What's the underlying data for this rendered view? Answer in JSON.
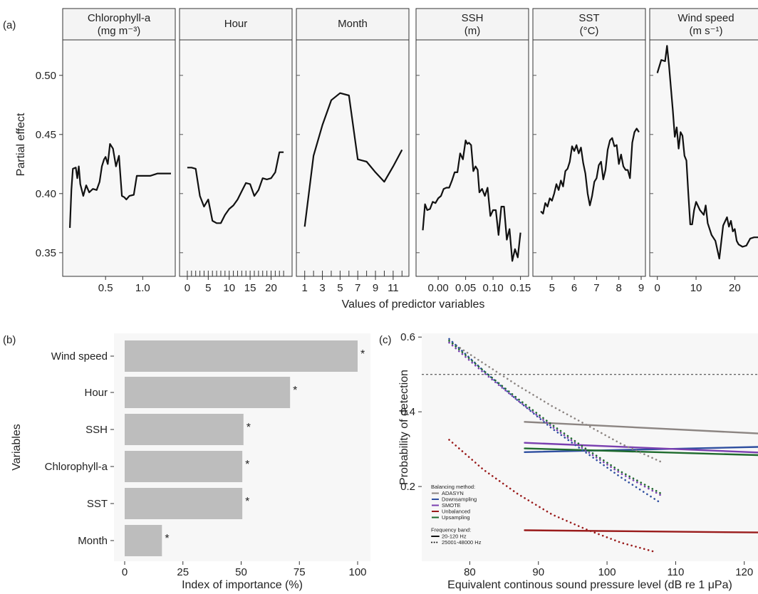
{
  "panel_labels": {
    "a": "(a)",
    "b": "(b)",
    "c": "(c)"
  },
  "colors": {
    "panel_bg": "#f7f7f7",
    "line": "#111111",
    "bar": "#bdbdbd",
    "adasyn": "#8c8582",
    "downsampling": "#2f4fa0",
    "smote": "#7a3fb0",
    "unbalanced": "#9a1b1b",
    "upsampling": "#1f6b2e"
  },
  "chart_data": [
    {
      "type": "line",
      "panel": "(a)",
      "ylabel": "Partial effect",
      "xlabel": "Values of predictor variables",
      "ylim": [
        0.33,
        0.53
      ],
      "yticks": [
        0.35,
        0.4,
        0.45,
        0.5
      ],
      "ytick_labels": [
        "0.35",
        "0.40",
        "0.45",
        "0.50"
      ],
      "facets": [
        {
          "title_line1": "Chlorophyll-a",
          "title_line2": "(mg m⁻³)",
          "xlim": [
            0,
            1.38
          ],
          "xticks": [
            0.5,
            1.0
          ],
          "xtick_labels": [
            "0.5",
            "1.0"
          ],
          "x": [
            0.02,
            0.04,
            0.06,
            0.1,
            0.12,
            0.14,
            0.16,
            0.2,
            0.24,
            0.28,
            0.33,
            0.38,
            0.42,
            0.45,
            0.48,
            0.5,
            0.53,
            0.56,
            0.6,
            0.64,
            0.68,
            0.72,
            0.75,
            0.78,
            0.82,
            0.88,
            0.92,
            1.0,
            1.1,
            1.2,
            1.3,
            1.38
          ],
          "y": [
            0.371,
            0.403,
            0.421,
            0.422,
            0.413,
            0.423,
            0.408,
            0.398,
            0.407,
            0.401,
            0.404,
            0.403,
            0.41,
            0.423,
            0.429,
            0.431,
            0.425,
            0.442,
            0.438,
            0.423,
            0.432,
            0.398,
            0.397,
            0.395,
            0.398,
            0.399,
            0.415,
            0.415,
            0.415,
            0.417,
            0.417,
            0.417
          ]
        },
        {
          "title_line1": "Hour",
          "title_line2": "",
          "xlim": [
            -0.5,
            24
          ],
          "xticks": [
            0,
            5,
            10,
            15,
            20
          ],
          "xtick_labels": [
            "0",
            "5",
            "10",
            "15",
            "20"
          ],
          "rug": [
            0,
            1,
            2,
            3,
            4,
            5,
            6,
            7,
            8,
            9,
            10,
            11,
            12,
            13,
            14,
            15,
            16,
            17,
            18,
            19,
            20,
            21,
            22,
            23
          ],
          "x": [
            0,
            1,
            2,
            3,
            4,
            5,
            6,
            7,
            8,
            9,
            10,
            11,
            12,
            13,
            14,
            15,
            16,
            17,
            18,
            19,
            20,
            21,
            22,
            23
          ],
          "y": [
            0.422,
            0.422,
            0.421,
            0.398,
            0.389,
            0.395,
            0.377,
            0.375,
            0.375,
            0.382,
            0.387,
            0.39,
            0.395,
            0.402,
            0.409,
            0.408,
            0.398,
            0.403,
            0.413,
            0.412,
            0.413,
            0.418,
            0.435,
            0.435
          ]
        },
        {
          "title_line1": "Month",
          "title_line2": "",
          "xlim": [
            0.7,
            12.3
          ],
          "xticks": [
            1,
            3,
            5,
            7,
            9,
            11
          ],
          "xtick_labels": [
            "1",
            "3",
            "5",
            "7",
            "9",
            "11"
          ],
          "rug": [
            1,
            2,
            3,
            4,
            5,
            6,
            7,
            8,
            9,
            10,
            11,
            12
          ],
          "x": [
            1,
            2,
            3,
            4,
            5,
            6,
            7,
            8,
            9,
            10,
            11,
            12
          ],
          "y": [
            0.372,
            0.432,
            0.458,
            0.479,
            0.485,
            0.483,
            0.429,
            0.427,
            0.418,
            0.41,
            0.423,
            0.437
          ]
        },
        {
          "title_line1": "SSH",
          "title_line2": "(m)",
          "xlim": [
            -0.03,
            0.157
          ],
          "xticks": [
            0.0,
            0.05,
            0.1,
            0.15
          ],
          "xtick_labels": [
            "0.00",
            "0.05",
            "0.10",
            "0.15"
          ],
          "x": [
            -0.028,
            -0.024,
            -0.02,
            -0.015,
            -0.01,
            -0.005,
            0.0,
            0.005,
            0.01,
            0.015,
            0.02,
            0.025,
            0.03,
            0.035,
            0.04,
            0.045,
            0.05,
            0.053,
            0.056,
            0.06,
            0.064,
            0.068,
            0.072,
            0.075,
            0.08,
            0.085,
            0.09,
            0.095,
            0.1,
            0.105,
            0.11,
            0.115,
            0.12,
            0.125,
            0.13,
            0.135,
            0.14,
            0.145,
            0.15
          ],
          "y": [
            0.369,
            0.391,
            0.386,
            0.387,
            0.393,
            0.392,
            0.396,
            0.398,
            0.404,
            0.405,
            0.405,
            0.411,
            0.418,
            0.418,
            0.434,
            0.429,
            0.445,
            0.442,
            0.443,
            0.441,
            0.419,
            0.423,
            0.42,
            0.401,
            0.404,
            0.398,
            0.405,
            0.381,
            0.386,
            0.386,
            0.365,
            0.389,
            0.389,
            0.361,
            0.37,
            0.343,
            0.353,
            0.346,
            0.367
          ]
        },
        {
          "title_line1": "SST",
          "title_line2": "(°C)",
          "xlim": [
            4.4,
            9.0
          ],
          "xticks": [
            5,
            6,
            7,
            8,
            9
          ],
          "xtick_labels": [
            "5",
            "6",
            "7",
            "8",
            "9"
          ],
          "x": [
            4.5,
            4.6,
            4.7,
            4.8,
            4.9,
            5.0,
            5.1,
            5.2,
            5.3,
            5.4,
            5.5,
            5.6,
            5.7,
            5.8,
            5.9,
            6.0,
            6.1,
            6.2,
            6.3,
            6.4,
            6.5,
            6.6,
            6.7,
            6.8,
            6.9,
            7.0,
            7.1,
            7.2,
            7.3,
            7.4,
            7.5,
            7.6,
            7.7,
            7.8,
            7.9,
            8.0,
            8.1,
            8.2,
            8.3,
            8.4,
            8.5,
            8.6,
            8.7,
            8.8,
            8.9
          ],
          "y": [
            0.385,
            0.383,
            0.392,
            0.389,
            0.396,
            0.394,
            0.4,
            0.408,
            0.403,
            0.411,
            0.406,
            0.419,
            0.421,
            0.427,
            0.44,
            0.436,
            0.441,
            0.434,
            0.439,
            0.426,
            0.417,
            0.4,
            0.39,
            0.398,
            0.41,
            0.413,
            0.424,
            0.427,
            0.412,
            0.42,
            0.437,
            0.445,
            0.447,
            0.44,
            0.441,
            0.425,
            0.433,
            0.423,
            0.42,
            0.42,
            0.413,
            0.443,
            0.452,
            0.455,
            0.452
          ]
        },
        {
          "title_line1": "Wind speed",
          "title_line2": "(m s⁻¹)",
          "xlim": [
            -0.5,
            26
          ],
          "xticks": [
            0,
            10,
            20
          ],
          "xtick_labels": [
            "0",
            "10",
            "20"
          ],
          "x": [
            0,
            1,
            2,
            2.5,
            3,
            4,
            4.5,
            5,
            5.5,
            6,
            6.5,
            7,
            7.5,
            8,
            8.5,
            9,
            9.5,
            10,
            11,
            12,
            12.5,
            13,
            14,
            15,
            16,
            17,
            18,
            18.5,
            19,
            19.5,
            20,
            20.5,
            21,
            22,
            23,
            24,
            25,
            26
          ],
          "y": [
            0.502,
            0.513,
            0.512,
            0.525,
            0.509,
            0.47,
            0.448,
            0.456,
            0.438,
            0.452,
            0.449,
            0.432,
            0.428,
            0.4,
            0.374,
            0.374,
            0.386,
            0.393,
            0.386,
            0.382,
            0.39,
            0.375,
            0.365,
            0.36,
            0.345,
            0.373,
            0.38,
            0.372,
            0.377,
            0.368,
            0.37,
            0.36,
            0.357,
            0.355,
            0.356,
            0.362,
            0.363,
            0.363
          ]
        }
      ]
    },
    {
      "type": "bar",
      "panel": "(b)",
      "orientation": "horizontal",
      "xlabel": "Index of importance (%)",
      "ylabel": "Variables",
      "xlim": [
        0,
        100
      ],
      "xticks": [
        0,
        25,
        50,
        75,
        100
      ],
      "xtick_labels": [
        "0",
        "25",
        "50",
        "75",
        "100"
      ],
      "categories": [
        "Wind speed",
        "Hour",
        "SSH",
        "Chlorophyll-a",
        "SST",
        "Month"
      ],
      "values": [
        100,
        71,
        51,
        50.5,
        50.5,
        16
      ],
      "annotations": [
        "*",
        "*",
        "*",
        "*",
        "*",
        "*"
      ]
    },
    {
      "type": "line",
      "panel": "(c)",
      "xlabel": "Equivalent continous sound pressure level (dB re 1 μPa)",
      "ylabel": "Probability of detection",
      "xlim": [
        73,
        122
      ],
      "ylim": [
        0.0,
        0.61
      ],
      "xticks": [
        80,
        90,
        100,
        110,
        120
      ],
      "xtick_labels": [
        "80",
        "90",
        "100",
        "110",
        "120"
      ],
      "yticks": [
        0.2,
        0.4,
        0.6
      ],
      "ytick_labels": [
        "0.2",
        "0.4",
        "0.6"
      ],
      "reference_line_y": 0.5,
      "legend": {
        "title_method": "Balancing method:",
        "title_band": "Frequency band:",
        "methods": [
          {
            "name": "ADASYN",
            "color_key": "adasyn"
          },
          {
            "name": "Downsampling",
            "color_key": "downsampling"
          },
          {
            "name": "SMOTE",
            "color_key": "smote"
          },
          {
            "name": "Unbalanced",
            "color_key": "unbalanced"
          },
          {
            "name": "Upsampling",
            "color_key": "upsampling"
          }
        ],
        "bands": [
          {
            "name": "20-120 Hz",
            "style": "solid"
          },
          {
            "name": "25001-48000 Hz",
            "style": "dotted"
          }
        ]
      },
      "series": [
        {
          "name": "ADASYN",
          "band": "20-120 Hz",
          "color_key": "adasyn",
          "x": [
            88,
            122
          ],
          "y": [
            0.373,
            0.342
          ]
        },
        {
          "name": "Downsampling",
          "band": "20-120 Hz",
          "color_key": "downsampling",
          "x": [
            88,
            122
          ],
          "y": [
            0.292,
            0.306
          ]
        },
        {
          "name": "SMOTE",
          "band": "20-120 Hz",
          "color_key": "smote",
          "x": [
            88,
            122
          ],
          "y": [
            0.317,
            0.291
          ]
        },
        {
          "name": "Unbalanced",
          "band": "20-120 Hz",
          "color_key": "unbalanced",
          "x": [
            88,
            122
          ],
          "y": [
            0.083,
            0.077
          ]
        },
        {
          "name": "Upsampling",
          "band": "20-120 Hz",
          "color_key": "upsampling",
          "x": [
            88,
            122
          ],
          "y": [
            0.302,
            0.284
          ]
        },
        {
          "name": "ADASYN",
          "band": "25001-48000 Hz",
          "color_key": "adasyn",
          "x": [
            77,
            82,
            87,
            92,
            97,
            102,
            108
          ],
          "y": [
            0.59,
            0.53,
            0.47,
            0.415,
            0.365,
            0.315,
            0.265
          ]
        },
        {
          "name": "Downsampling",
          "band": "25001-48000 Hz",
          "color_key": "downsampling",
          "x": [
            77,
            82,
            87,
            92,
            97,
            102,
            107.5
          ],
          "y": [
            0.595,
            0.51,
            0.43,
            0.355,
            0.29,
            0.225,
            0.16
          ]
        },
        {
          "name": "SMOTE",
          "band": "25001-48000 Hz",
          "color_key": "smote",
          "x": [
            77,
            82,
            87,
            92,
            97,
            102,
            108
          ],
          "y": [
            0.585,
            0.505,
            0.43,
            0.36,
            0.295,
            0.235,
            0.175
          ]
        },
        {
          "name": "Unbalanced",
          "band": "25001-48000 Hz",
          "color_key": "unbalanced",
          "x": [
            77,
            82,
            87,
            92,
            97,
            102,
            107
          ],
          "y": [
            0.325,
            0.245,
            0.18,
            0.125,
            0.085,
            0.05,
            0.025
          ]
        },
        {
          "name": "Upsampling",
          "band": "25001-48000 Hz",
          "color_key": "upsampling",
          "x": [
            77,
            82,
            87,
            92,
            97,
            102,
            108
          ],
          "y": [
            0.59,
            0.51,
            0.435,
            0.365,
            0.3,
            0.24,
            0.18
          ]
        }
      ]
    }
  ]
}
